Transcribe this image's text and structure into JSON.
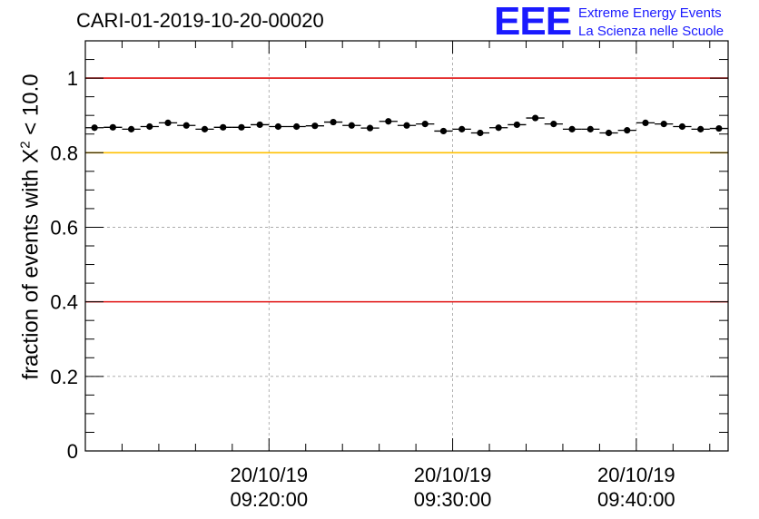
{
  "header": {
    "title": "CARI-01-2019-10-20-00020",
    "logo_mark": "EEE",
    "logo_line1": "Extreme Energy Events",
    "logo_line2": "La Scienza nelle Scuole"
  },
  "colors": {
    "red_line": "#e01010",
    "yellow_line": "#ffc000",
    "logo": "#1a1aff",
    "points": "#000000",
    "grid": "#a0a0a0"
  },
  "chart_data": {
    "type": "scatter",
    "title": "CARI-01-2019-10-20-00020",
    "ylabel_prefix": "fraction of events with ",
    "ylabel_symbol": "X",
    "ylabel_sup": "2",
    "ylabel_suffix": " < 10.0",
    "ylim": [
      0,
      1.1
    ],
    "xlim_minutes": [
      0,
      35
    ],
    "y_ticks": [
      {
        "value": 0,
        "label": "0"
      },
      {
        "value": 0.2,
        "label": "0.2"
      },
      {
        "value": 0.4,
        "label": "0.4"
      },
      {
        "value": 0.6,
        "label": "0.6"
      },
      {
        "value": 0.8,
        "label": "0.8"
      },
      {
        "value": 1,
        "label": "1"
      }
    ],
    "x_ticks": [
      {
        "minute": 10,
        "date": "20/10/19",
        "time": "09:20:00"
      },
      {
        "minute": 20,
        "date": "20/10/19",
        "time": "09:30:00"
      },
      {
        "minute": 30,
        "date": "20/10/19",
        "time": "09:40:00"
      }
    ],
    "reference_lines": [
      {
        "y": 1.0,
        "color": "red"
      },
      {
        "y": 0.8,
        "color": "yellow"
      },
      {
        "y": 0.4,
        "color": "red"
      }
    ],
    "grid": true,
    "bin_width_minutes": 1,
    "series": [
      {
        "name": "fraction",
        "x": [
          0.5,
          1.5,
          2.5,
          3.5,
          4.5,
          5.5,
          6.5,
          7.5,
          8.5,
          9.5,
          10.5,
          11.5,
          12.5,
          13.5,
          14.5,
          15.5,
          16.5,
          17.5,
          18.5,
          19.5,
          20.5,
          21.5,
          22.5,
          23.5,
          24.5,
          25.5,
          26.5,
          27.5,
          28.5,
          29.5,
          30.5,
          31.5,
          32.5,
          33.5,
          34.5
        ],
        "y": [
          0.867,
          0.868,
          0.863,
          0.87,
          0.88,
          0.873,
          0.863,
          0.868,
          0.868,
          0.875,
          0.87,
          0.87,
          0.872,
          0.882,
          0.873,
          0.866,
          0.884,
          0.873,
          0.877,
          0.858,
          0.863,
          0.853,
          0.867,
          0.875,
          0.893,
          0.877,
          0.863,
          0.863,
          0.853,
          0.86,
          0.88,
          0.877,
          0.87,
          0.863,
          0.865
        ]
      }
    ]
  }
}
